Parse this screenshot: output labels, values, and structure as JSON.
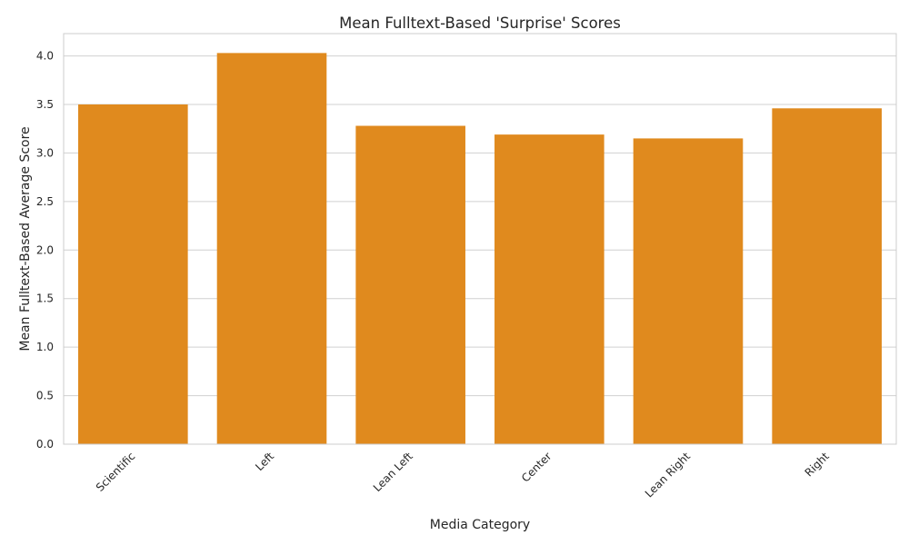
{
  "chart_data": {
    "type": "bar",
    "title": "Mean Fulltext-Based 'Surprise' Scores",
    "xlabel": "Media Category",
    "ylabel": "Mean Fulltext-Based Average Score",
    "categories": [
      "Scientific",
      "Left",
      "Lean Left",
      "Center",
      "Lean Right",
      "Right"
    ],
    "values": [
      3.5,
      4.03,
      3.28,
      3.19,
      3.15,
      3.46
    ],
    "ylim": [
      0,
      4.23
    ],
    "yticks": [
      "0.0",
      "0.5",
      "1.0",
      "1.5",
      "2.0",
      "2.5",
      "3.0",
      "3.5",
      "4.0"
    ],
    "grid": "y-only",
    "colors": {
      "bar": "#e08a1e",
      "grid": "#d0d0d0",
      "spine": "#cccccc"
    }
  }
}
